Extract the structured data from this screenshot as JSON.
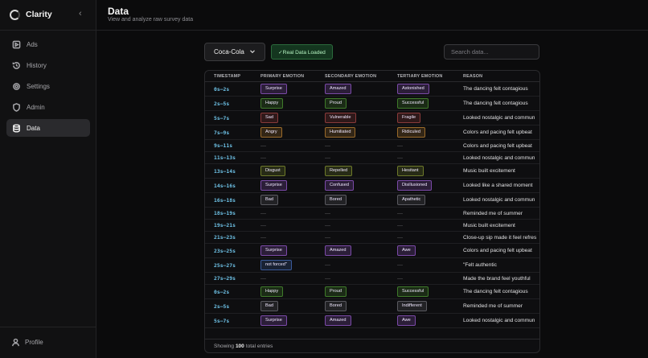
{
  "app": {
    "name": "Clarity"
  },
  "sidebar": {
    "items": [
      {
        "label": "Ads",
        "icon": "ads-icon"
      },
      {
        "label": "History",
        "icon": "history-icon"
      },
      {
        "label": "Settings",
        "icon": "settings-icon"
      },
      {
        "label": "Admin",
        "icon": "shield-icon"
      },
      {
        "label": "Data",
        "icon": "database-icon",
        "active": true
      }
    ],
    "profile_label": "Profile"
  },
  "header": {
    "title": "Data",
    "subtitle": "View and analyze raw survey data"
  },
  "toolbar": {
    "brand_select": "Coca-Cola",
    "status_badge": "✓Real Data Loaded",
    "search_placeholder": "Search data..."
  },
  "table": {
    "columns": [
      "TIMESTAMP",
      "PRIMARY EMOTION",
      "SECONDARY EMOTION",
      "TERTIARY EMOTION",
      "REASON"
    ],
    "rows": [
      [
        "0s–2s",
        "Surprise",
        "Amazed",
        "Astonished",
        "The dancing felt contagious"
      ],
      [
        "2s–5s",
        "Happy",
        "Proud",
        "Successful",
        "The dancing felt contagious"
      ],
      [
        "5s–7s",
        "Sad",
        "Vulnerable",
        "Fragile",
        "Looked nostalgic and commun"
      ],
      [
        "7s–9s",
        "Angry",
        "Humiliated",
        "Ridiculed",
        "Colors and pacing felt upbeat"
      ],
      [
        "9s–11s",
        "—",
        "—",
        "—",
        "Colors and pacing felt upbeat"
      ],
      [
        "11s–13s",
        "—",
        "—",
        "—",
        "Looked nostalgic and commun"
      ],
      [
        "13s–14s",
        "Disgust",
        "Repelled",
        "Hesitant",
        "Music built excitement"
      ],
      [
        "14s–16s",
        "Surprise",
        "Confused",
        "Disillusioned",
        "Looked like a shared moment"
      ],
      [
        "16s–18s",
        "Bad",
        "Bored",
        "Apathetic",
        "Looked nostalgic and commun"
      ],
      [
        "18s–19s",
        "—",
        "—",
        "—",
        "Reminded me of summer"
      ],
      [
        "19s–21s",
        "—",
        "—",
        "—",
        "Music built excitement"
      ],
      [
        "21s–23s",
        "—",
        "—",
        "—",
        "Close-up sip made it feel refres"
      ],
      [
        "23s–25s",
        "Surprise",
        "Amazed",
        "Awe",
        "Colors and pacing felt upbeat"
      ],
      [
        "25s–27s",
        "not forced\"",
        "—",
        "—",
        "\"Felt authentic"
      ],
      [
        "27s–29s",
        "—",
        "—",
        "—",
        "Made the brand feel youthful"
      ],
      [
        "0s–2s",
        "Happy",
        "Proud",
        "Successful",
        "The dancing felt contagious"
      ],
      [
        "2s–5s",
        "Bad",
        "Bored",
        "Indifferent",
        "Reminded me of summer"
      ],
      [
        "5s–7s",
        "Surprise",
        "Amazed",
        "Awe",
        "Looked nostalgic and commun"
      ]
    ],
    "footer": {
      "prefix": "Showing",
      "count": "100",
      "suffix": "total entries"
    }
  },
  "colors": {
    "timestamp": "#6fc3e8",
    "emotion_tags": {
      "Surprise": "#7b4aa8",
      "Amazed": "#7b4aa8",
      "Astonished": "#7b4aa8",
      "Awe": "#7b4aa8",
      "Confused": "#7b4aa8",
      "Disillusioned": "#7b4aa8",
      "Happy": "#3f7a2a",
      "Proud": "#3f7a2a",
      "Successful": "#3f7a2a",
      "Sad": "#8a3a3a",
      "Vulnerable": "#8a3a3a",
      "Fragile": "#8a3a3a",
      "Angry": "#9a6a2a",
      "Humiliated": "#9a6a2a",
      "Ridiculed": "#9a6a2a",
      "Disgust": "#6e7a2a",
      "Repelled": "#6e7a2a",
      "Hesitant": "#6e7a2a",
      "Bad": "#5a5a60",
      "Bored": "#5a5a60",
      "Apathetic": "#5a5a60",
      "Indifferent": "#5a5a60",
      "not forced\"": "#3a5a9a"
    }
  }
}
